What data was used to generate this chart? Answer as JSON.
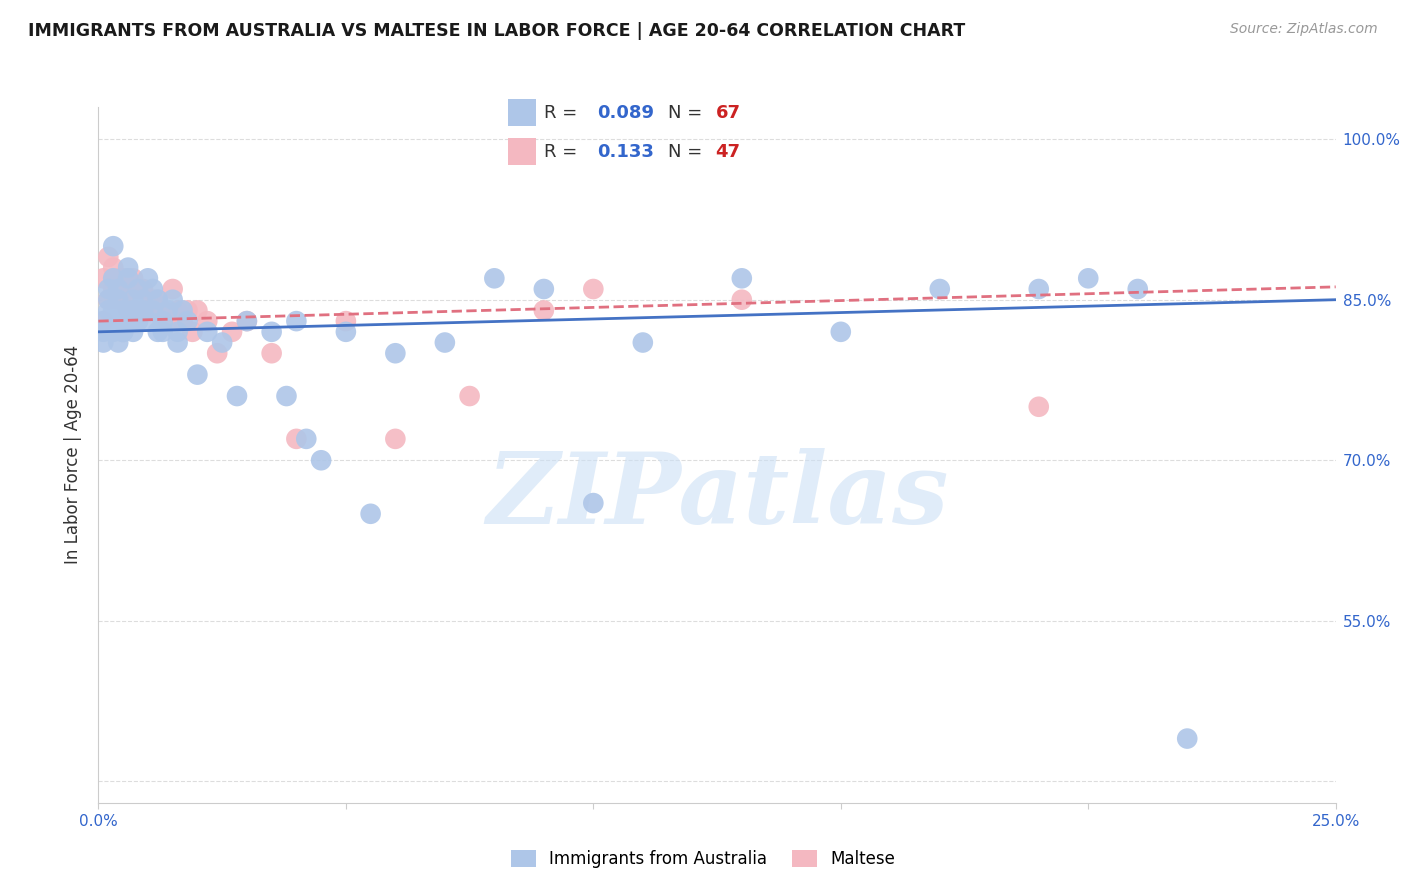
{
  "title": "IMMIGRANTS FROM AUSTRALIA VS MALTESE IN LABOR FORCE | AGE 20-64 CORRELATION CHART",
  "source": "Source: ZipAtlas.com",
  "ylabel": "In Labor Force | Age 20-64",
  "xmin": 0.0,
  "xmax": 0.25,
  "ymin": 0.38,
  "ymax": 1.03,
  "yticks": [
    0.4,
    0.55,
    0.7,
    0.85,
    1.0
  ],
  "ytick_labels": [
    "",
    "55.0%",
    "70.0%",
    "85.0%",
    "100.0%"
  ],
  "xticks": [
    0.0,
    0.05,
    0.1,
    0.15,
    0.2,
    0.25
  ],
  "xtick_labels": [
    "0.0%",
    "",
    "",
    "",
    "",
    "25.0%"
  ],
  "grid_color": "#dddddd",
  "background_color": "#ffffff",
  "blue_color": "#aec6e8",
  "pink_color": "#f4b8c1",
  "blue_line_color": "#4472c4",
  "pink_line_color": "#e07080",
  "watermark": "ZIPatlas",
  "blue_scatter_x": [
    0.001,
    0.001,
    0.001,
    0.002,
    0.002,
    0.002,
    0.003,
    0.003,
    0.003,
    0.003,
    0.004,
    0.004,
    0.004,
    0.004,
    0.005,
    0.005,
    0.005,
    0.005,
    0.006,
    0.006,
    0.006,
    0.007,
    0.007,
    0.007,
    0.008,
    0.008,
    0.009,
    0.009,
    0.01,
    0.01,
    0.011,
    0.011,
    0.012,
    0.012,
    0.013,
    0.013,
    0.014,
    0.015,
    0.016,
    0.016,
    0.017,
    0.018,
    0.02,
    0.022,
    0.025,
    0.028,
    0.03,
    0.035,
    0.038,
    0.04,
    0.042,
    0.045,
    0.05,
    0.055,
    0.06,
    0.07,
    0.08,
    0.09,
    0.1,
    0.11,
    0.13,
    0.15,
    0.17,
    0.19,
    0.2,
    0.21,
    0.22
  ],
  "blue_scatter_y": [
    0.82,
    0.83,
    0.81,
    0.85,
    0.84,
    0.86,
    0.9,
    0.82,
    0.84,
    0.87,
    0.81,
    0.83,
    0.85,
    0.86,
    0.82,
    0.84,
    0.83,
    0.82,
    0.87,
    0.88,
    0.83,
    0.85,
    0.84,
    0.82,
    0.86,
    0.83,
    0.85,
    0.84,
    0.83,
    0.87,
    0.86,
    0.84,
    0.82,
    0.85,
    0.83,
    0.82,
    0.84,
    0.85,
    0.82,
    0.81,
    0.84,
    0.83,
    0.78,
    0.82,
    0.81,
    0.76,
    0.83,
    0.82,
    0.76,
    0.83,
    0.72,
    0.7,
    0.82,
    0.65,
    0.8,
    0.81,
    0.87,
    0.86,
    0.66,
    0.81,
    0.87,
    0.82,
    0.86,
    0.86,
    0.87,
    0.86,
    0.44
  ],
  "pink_scatter_x": [
    0.001,
    0.001,
    0.002,
    0.002,
    0.003,
    0.003,
    0.003,
    0.004,
    0.004,
    0.005,
    0.005,
    0.006,
    0.006,
    0.006,
    0.007,
    0.007,
    0.007,
    0.008,
    0.008,
    0.009,
    0.009,
    0.01,
    0.011,
    0.011,
    0.012,
    0.012,
    0.013,
    0.014,
    0.015,
    0.016,
    0.017,
    0.018,
    0.019,
    0.02,
    0.022,
    0.024,
    0.027,
    0.03,
    0.035,
    0.04,
    0.05,
    0.06,
    0.075,
    0.09,
    0.1,
    0.13,
    0.19
  ],
  "pink_scatter_y": [
    0.83,
    0.87,
    0.85,
    0.89,
    0.87,
    0.88,
    0.86,
    0.87,
    0.85,
    0.87,
    0.85,
    0.87,
    0.86,
    0.84,
    0.87,
    0.86,
    0.84,
    0.84,
    0.86,
    0.86,
    0.84,
    0.84,
    0.85,
    0.84,
    0.84,
    0.85,
    0.84,
    0.83,
    0.86,
    0.84,
    0.83,
    0.84,
    0.82,
    0.84,
    0.83,
    0.8,
    0.82,
    0.83,
    0.8,
    0.72,
    0.83,
    0.72,
    0.76,
    0.84,
    0.86,
    0.85,
    0.75
  ],
  "trend_blue_x0": 0.0,
  "trend_blue_y0": 0.82,
  "trend_blue_x1": 0.25,
  "trend_blue_y1": 0.85,
  "trend_pink_x0": 0.0,
  "trend_pink_y0": 0.83,
  "trend_pink_x1": 0.25,
  "trend_pink_y1": 0.862
}
